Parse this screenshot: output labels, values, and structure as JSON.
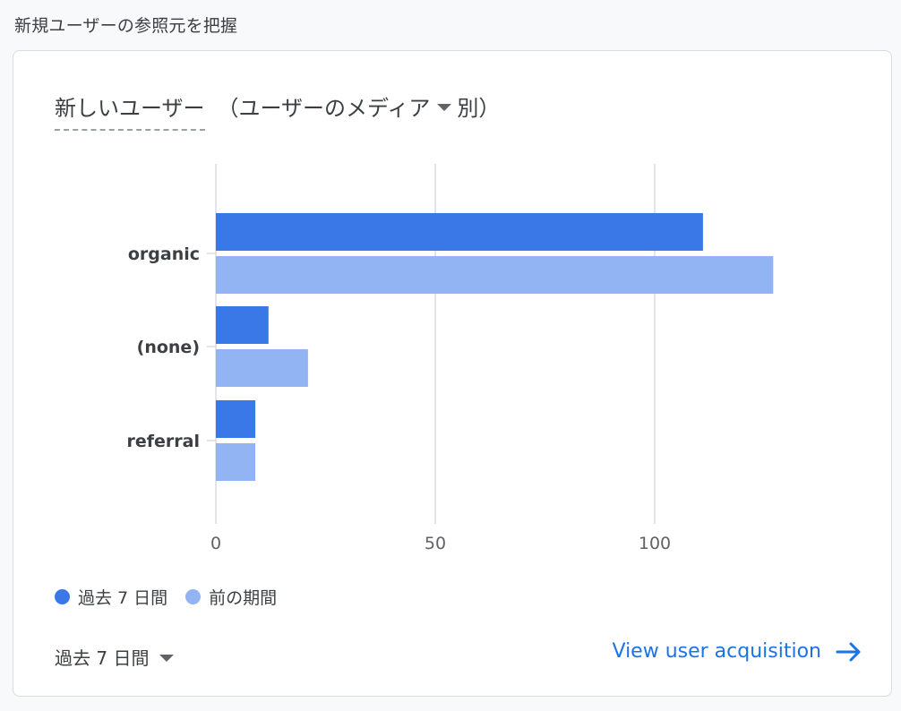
{
  "page": {
    "section_title": "新規ユーザーの参照元を把握"
  },
  "card": {
    "metric_label": "新しいユーザー",
    "dimension_prefix": "（",
    "dimension_label": "ユーザーのメディア",
    "dimension_suffix": "別）",
    "legend": [
      {
        "label": "過去 7 日間",
        "color": "#3b78e7"
      },
      {
        "label": "前の期間",
        "color": "#93b4f3"
      }
    ],
    "date_range_label": "過去 7 日間",
    "footer_link_label": "View user acquisition",
    "icons": {
      "caret": "caret-down-icon",
      "arrow": "arrow-right-icon"
    },
    "colors": {
      "accent": "#1a73e8",
      "current_period": "#3b78e7",
      "previous_period": "#93b4f3"
    }
  },
  "chart_data": {
    "type": "bar",
    "orientation": "horizontal",
    "categories": [
      "organic",
      "(none)",
      "referral"
    ],
    "series": [
      {
        "name": "過去 7 日間",
        "values": [
          111,
          12,
          9
        ]
      },
      {
        "name": "前の期間",
        "values": [
          127,
          21,
          9
        ]
      }
    ],
    "x_ticks": [
      0,
      50,
      100
    ],
    "xlim": [
      0,
      150
    ],
    "grid": true,
    "legend_position": "bottom-left"
  }
}
